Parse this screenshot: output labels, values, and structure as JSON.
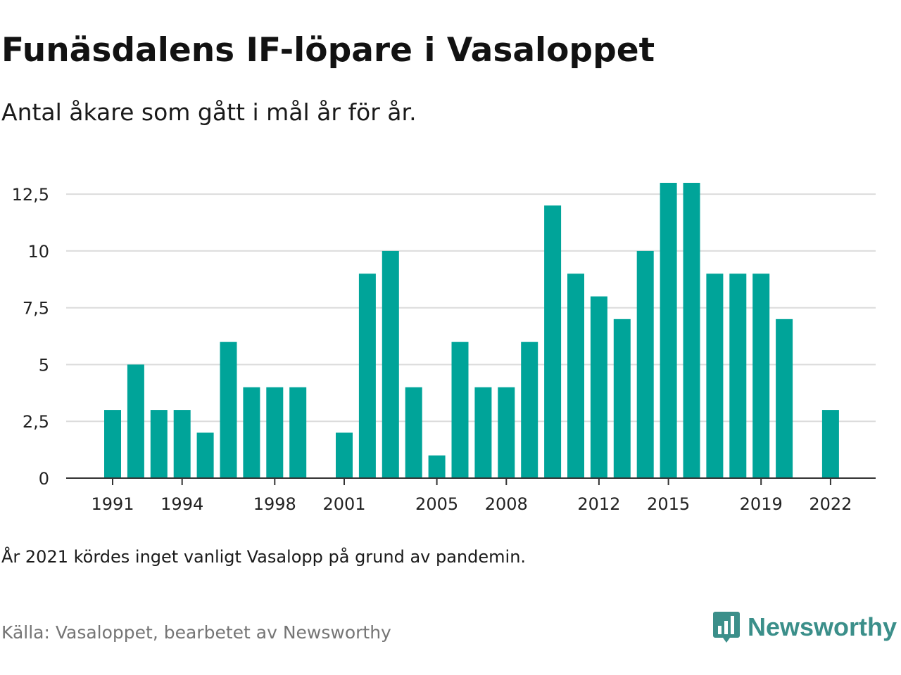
{
  "header": {
    "title": "Funäsdalens IF-löpare i Vasaloppet",
    "subtitle": "Antal åkare som gått i mål år för år."
  },
  "footer": {
    "note": "År 2021 kördes inget vanligt Vasalopp på grund av pandemin.",
    "source": "Källa: Vasaloppet, bearbetet av Newsworthy",
    "brand": "Newsworthy",
    "brand_icon": "newsworthy-logo-icon"
  },
  "colors": {
    "bar": "#00a499",
    "grid": "#dcdcdc",
    "axis": "#333333",
    "brand": "#3b8f8a"
  },
  "chart_data": {
    "type": "bar",
    "title": "Funäsdalens IF-löpare i Vasaloppet",
    "subtitle": "Antal åkare som gått i mål år för år.",
    "xlabel": "",
    "ylabel": "",
    "ylim": [
      0,
      13
    ],
    "grid": true,
    "categories": [
      1991,
      1992,
      1993,
      1994,
      1995,
      1996,
      1997,
      1998,
      1999,
      2000,
      2001,
      2002,
      2003,
      2004,
      2005,
      2006,
      2007,
      2008,
      2009,
      2010,
      2011,
      2012,
      2013,
      2014,
      2015,
      2016,
      2017,
      2018,
      2019,
      2020,
      2021,
      2022
    ],
    "values": [
      3,
      5,
      3,
      3,
      2,
      6,
      4,
      4,
      4,
      0,
      2,
      9,
      10,
      4,
      1,
      6,
      4,
      4,
      6,
      12,
      9,
      8,
      7,
      10,
      13,
      13,
      9,
      9,
      9,
      7,
      0,
      3
    ],
    "y_ticks": [
      0,
      2.5,
      5,
      7.5,
      10,
      12.5
    ],
    "y_tick_labels": [
      "0",
      "2,5",
      "5",
      "7,5",
      "10",
      "12,5"
    ],
    "x_tick_labels": [
      "1991",
      "1994",
      "1998",
      "2001",
      "2005",
      "2008",
      "2012",
      "2015",
      "2019",
      "2022"
    ]
  }
}
